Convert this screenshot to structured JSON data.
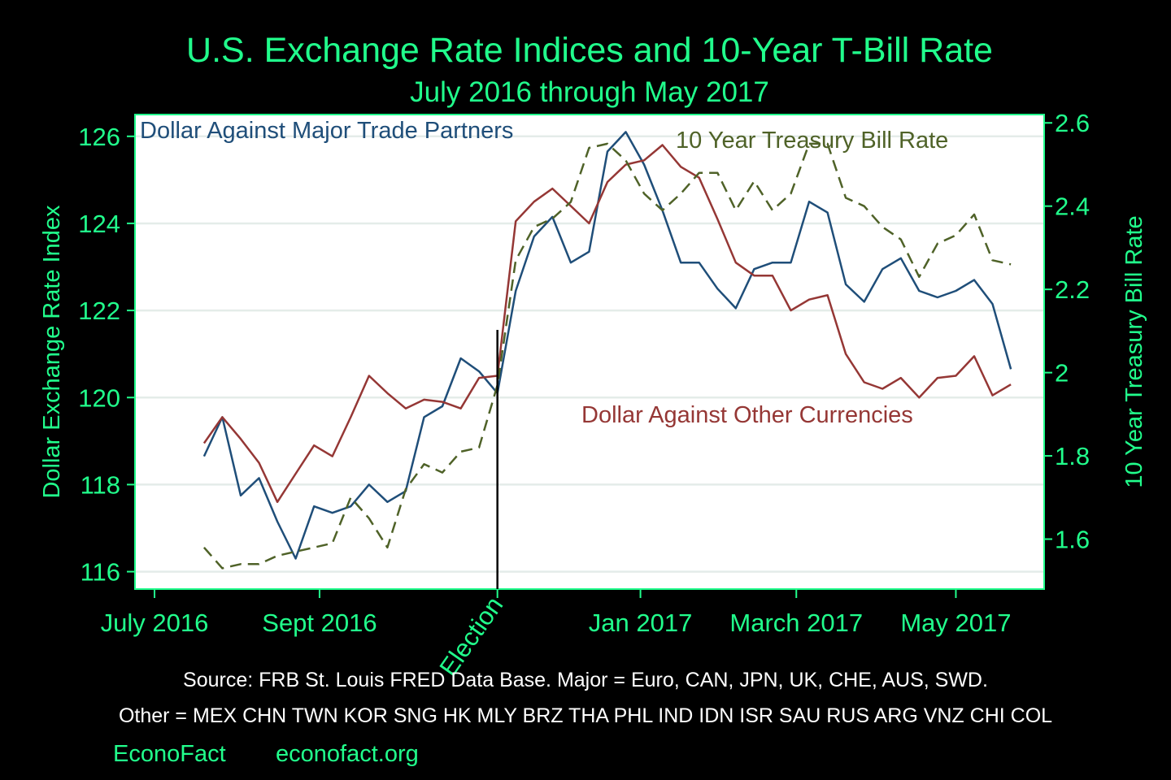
{
  "chart_data": {
    "type": "line",
    "title": "U.S. Exchange Rate Indices and 10-Year T-Bill Rate",
    "subtitle": "July 2016 through May 2017",
    "ylabel": "Dollar Exchange Rate Index",
    "y2label": "10 Year Treasury Bill Rate",
    "ylim": [
      115.6,
      126.5
    ],
    "y2lim": [
      1.48,
      2.62
    ],
    "yticks": [
      "116",
      "118",
      "120",
      "122",
      "124",
      "126"
    ],
    "y2ticks": [
      "1.6",
      "1.8",
      "2",
      "2.2",
      "2.4",
      "2.6"
    ],
    "xticks": [
      {
        "label": "July 2016",
        "week": 0
      },
      {
        "label": "Sept 2016",
        "week": 9
      },
      {
        "label": "Jan 2017",
        "week": 26.5
      },
      {
        "label": "March 2017",
        "week": 35
      },
      {
        "label": "May 2017",
        "week": 43.7
      }
    ],
    "election": {
      "label": "Election",
      "week": 18.7
    },
    "x_unit": "weeks since July 1, 2016",
    "grid": true,
    "colors": {
      "background": "#000000",
      "plot_background": "#ffffff",
      "text": "#21ff8c",
      "grid": "#e4ece9"
    },
    "series": [
      {
        "name": "Dollar Against Major Trade Partners",
        "axis": "left",
        "color": "#1f4e79",
        "dash": "",
        "x": [
          2.7,
          3.7,
          4.7,
          5.7,
          6.7,
          7.7,
          8.7,
          9.7,
          10.7,
          11.7,
          12.7,
          13.7,
          14.7,
          15.7,
          16.7,
          17.7,
          18.7,
          19.7,
          20.7,
          21.7,
          22.7,
          23.7,
          24.7,
          25.7,
          26.7,
          27.7,
          28.7,
          29.7,
          30.7,
          31.7,
          32.7,
          33.7,
          34.7,
          35.7,
          36.7,
          37.7,
          38.7,
          39.7,
          40.7,
          41.7,
          42.7,
          43.7,
          44.7,
          45.7,
          46.7
        ],
        "values": [
          118.65,
          119.55,
          117.75,
          118.15,
          117.15,
          116.3,
          117.5,
          117.35,
          117.5,
          118.0,
          117.6,
          117.85,
          119.55,
          119.8,
          120.9,
          120.6,
          120.1,
          122.45,
          123.7,
          124.15,
          123.1,
          123.35,
          125.65,
          126.1,
          125.35,
          124.3,
          123.1,
          123.1,
          122.5,
          122.05,
          122.95,
          123.1,
          123.1,
          124.5,
          124.25,
          122.6,
          122.2,
          122.95,
          123.2,
          122.45,
          122.3,
          122.45,
          122.7,
          122.15,
          120.65
        ]
      },
      {
        "name": "Dollar Against Other Currencies",
        "axis": "left",
        "color": "#953735",
        "dash": "",
        "x": [
          2.7,
          3.7,
          4.7,
          5.7,
          6.7,
          7.7,
          8.7,
          9.7,
          10.7,
          11.7,
          12.7,
          13.7,
          14.7,
          15.7,
          16.7,
          17.7,
          18.7,
          19.7,
          20.7,
          21.7,
          22.7,
          23.7,
          24.7,
          25.7,
          26.7,
          27.7,
          28.7,
          29.7,
          30.7,
          31.7,
          32.7,
          33.7,
          34.7,
          35.7,
          36.7,
          37.7,
          38.7,
          39.7,
          40.7,
          41.7,
          42.7,
          43.7,
          44.7,
          45.7,
          46.7
        ],
        "values": [
          118.95,
          119.55,
          119.05,
          118.5,
          117.6,
          118.25,
          118.9,
          118.65,
          119.55,
          120.5,
          120.1,
          119.75,
          119.95,
          119.9,
          119.75,
          120.45,
          120.5,
          124.05,
          124.5,
          124.8,
          124.4,
          124.0,
          124.95,
          125.35,
          125.45,
          125.8,
          125.3,
          125.05,
          124.1,
          123.1,
          122.8,
          122.8,
          122.0,
          122.25,
          122.35,
          121.0,
          120.35,
          120.2,
          120.45,
          120.0,
          120.45,
          120.5,
          120.95,
          120.05,
          120.3
        ]
      },
      {
        "name": "10 Year Treasury Bill Rate",
        "axis": "right",
        "color": "#4f6228",
        "dash": "14,8",
        "x": [
          2.7,
          3.7,
          4.7,
          5.7,
          6.7,
          7.7,
          8.7,
          9.7,
          10.7,
          11.7,
          12.7,
          13.7,
          14.7,
          15.7,
          16.7,
          17.7,
          18.7,
          19.7,
          20.7,
          21.7,
          22.7,
          23.7,
          24.7,
          25.7,
          26.7,
          27.7,
          28.7,
          29.7,
          30.7,
          31.7,
          32.7,
          33.7,
          34.7,
          35.7,
          36.7,
          37.7,
          38.7,
          39.7,
          40.7,
          41.7,
          42.7,
          43.7,
          44.7,
          45.7,
          46.7
        ],
        "values": [
          1.58,
          1.53,
          1.54,
          1.54,
          1.56,
          1.57,
          1.58,
          1.59,
          1.7,
          1.65,
          1.58,
          1.72,
          1.78,
          1.76,
          1.81,
          1.82,
          1.97,
          2.27,
          2.35,
          2.37,
          2.41,
          2.54,
          2.55,
          2.51,
          2.43,
          2.39,
          2.43,
          2.48,
          2.48,
          2.39,
          2.46,
          2.39,
          2.43,
          2.55,
          2.55,
          2.42,
          2.4,
          2.35,
          2.32,
          2.23,
          2.31,
          2.33,
          2.38,
          2.27,
          2.26
        ]
      }
    ],
    "annotations": [
      "Dollar Against Major Trade Partners",
      "10 Year Treasury Bill Rate",
      "Dollar Against Other Currencies"
    ]
  },
  "footer": {
    "source_line": "Source: FRB St. Louis FRED Data Base.      Major = Euro, CAN, JPN, UK, CHE, AUS, SWD.",
    "other_line": "Other = MEX CHN TWN KOR SNG HK MLY BRZ THA PHL IND IDN ISR SAU RUS ARG VNZ CHI COL",
    "brand_name": "EconoFact",
    "brand_url": "econofact.org"
  }
}
